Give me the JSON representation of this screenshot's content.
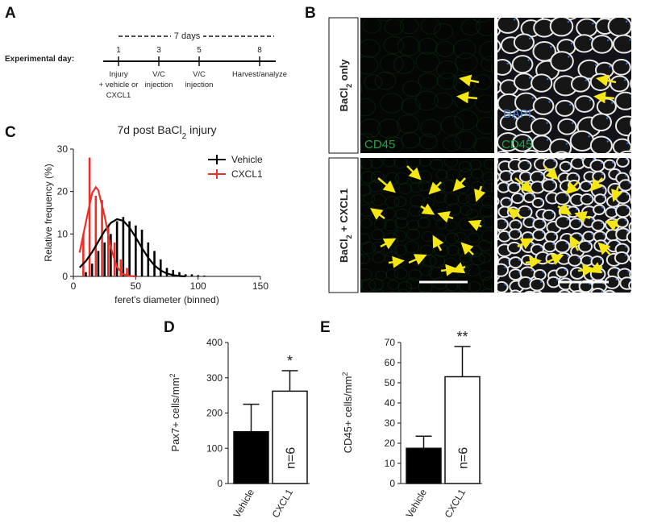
{
  "panel_labels": [
    "A",
    "B",
    "C",
    "D",
    "E"
  ],
  "timeline": {
    "span": "7 days",
    "label": "Experimental day:",
    "events": [
      {
        "day": 1,
        "lines": [
          "Injury",
          "+ vehicle or",
          "CXCL1"
        ]
      },
      {
        "day": 3,
        "lines": [
          "V/C",
          "injection"
        ]
      },
      {
        "day": 5,
        "lines": [
          "V/C",
          "injection"
        ]
      },
      {
        "day": 8,
        "lines": [
          "Harvest/analyze"
        ]
      }
    ]
  },
  "microscopy": {
    "rows": [
      [
        "BaCl",
        "2",
        " only"
      ],
      [
        "BaCl",
        "2",
        " + CXCL1"
      ]
    ],
    "stain_cd45": "CD45",
    "stain_dapi": "DAPI"
  },
  "chart_data": [
    {
      "type": "histogram-fit",
      "title": [
        "7d post BaCl",
        "2",
        " injury"
      ],
      "xlabel": "feret's diameter (binned)",
      "ylabel": "Relative frequency (%)",
      "xlim": [
        0,
        150
      ],
      "xticks": [
        0,
        50,
        100,
        150
      ],
      "ylim": [
        0,
        30
      ],
      "yticks": [
        0,
        10,
        20,
        30
      ],
      "series": [
        {
          "name": "Vehicle",
          "color": "#000000",
          "type": "bar",
          "x": [
            10,
            15,
            20,
            25,
            30,
            35,
            40,
            45,
            50,
            55,
            60,
            65,
            70,
            75,
            80,
            85,
            90,
            95,
            100,
            105
          ],
          "values": [
            1,
            3,
            6,
            8,
            10,
            13,
            14,
            13,
            12,
            11,
            8,
            6,
            4,
            2,
            1.5,
            1,
            0.5,
            0.5,
            0.3,
            0.2
          ]
        },
        {
          "name": "CXCL1",
          "color": "#e8312a",
          "type": "bar",
          "x": [
            8,
            13,
            18,
            23,
            28,
            33,
            38,
            43
          ],
          "values": [
            10,
            28,
            19,
            18,
            12,
            8,
            4,
            2
          ]
        },
        {
          "color": "#000000",
          "type": "line",
          "x": [
            5,
            10,
            15,
            20,
            25,
            30,
            35,
            40,
            45,
            50,
            55,
            60,
            65,
            70,
            75,
            80,
            85,
            90
          ],
          "values": [
            2.1,
            3.6,
            5.7,
            8.2,
            10.7,
            12.6,
            13.5,
            13.1,
            11.5,
            9.2,
            6.7,
            4.4,
            2.6,
            1.4,
            0.7,
            0.3,
            0.1,
            0
          ]
        },
        {
          "color": "#e8312a",
          "type": "line",
          "x": [
            5,
            10,
            15,
            18,
            20,
            25,
            30,
            35,
            40,
            45,
            50
          ],
          "values": [
            5.6,
            12.7,
            19.6,
            21,
            20.3,
            14.3,
            6.8,
            2.2,
            0.5,
            0.1,
            0
          ]
        }
      ],
      "legend": "upper right"
    },
    {
      "type": "bar",
      "ylabel": [
        "Pax7+ cells/mm",
        "2"
      ],
      "categories": [
        "Vehicle",
        "CXCL1"
      ],
      "values": [
        147,
        262
      ],
      "errors": [
        78,
        58
      ],
      "colors": [
        "#000000",
        "#ffffff"
      ],
      "ylim": [
        0,
        400
      ],
      "yticks": [
        0,
        100,
        200,
        300,
        400
      ],
      "significance": "*",
      "n_label": "n=6"
    },
    {
      "type": "bar",
      "ylabel": [
        "CD45+ cells/mm",
        "2"
      ],
      "categories": [
        "Vehicle",
        "CXCL1"
      ],
      "values": [
        17.5,
        53
      ],
      "errors": [
        6,
        15
      ],
      "colors": [
        "#000000",
        "#ffffff"
      ],
      "ylim": [
        0,
        70
      ],
      "yticks": [
        0,
        10,
        20,
        30,
        40,
        50,
        60,
        70
      ],
      "significance": "**",
      "n_label": "n=6"
    }
  ]
}
